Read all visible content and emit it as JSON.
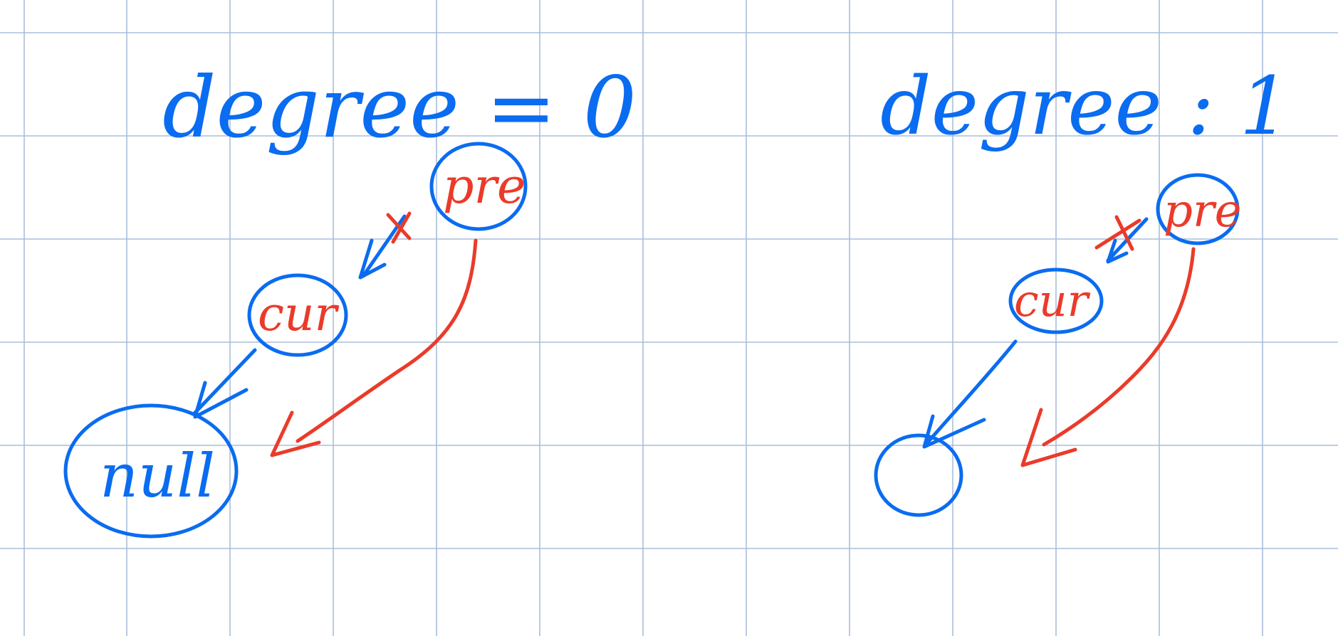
{
  "colors": {
    "grid": "#a9bedb",
    "blue_ink": "#0a6cf0",
    "red_ink": "#ea3b2a",
    "background": "#ffffff"
  },
  "left": {
    "heading": "degree = 0",
    "pre_label": "pre",
    "cur_label": "cur",
    "null_label": "null"
  },
  "right": {
    "heading": "degree : 1",
    "pre_label": "pre",
    "cur_label": "cur"
  }
}
